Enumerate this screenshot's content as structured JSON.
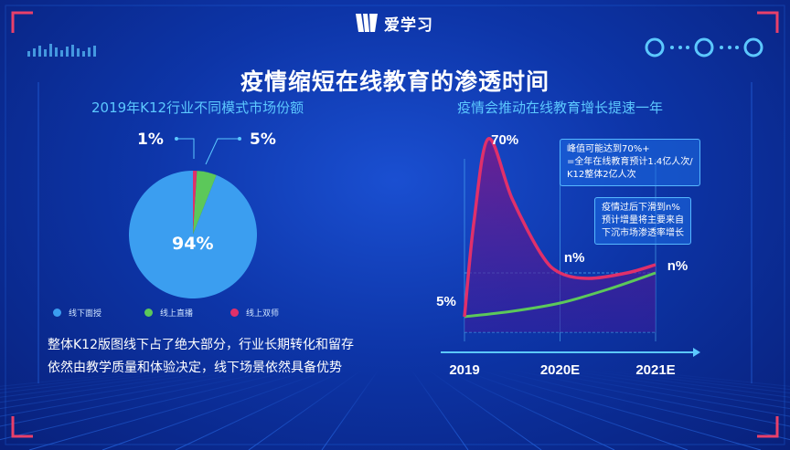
{
  "brand": {
    "name": "爱学习"
  },
  "title": "疫情缩短在线教育的渗透时间",
  "left": {
    "subtitle": "2019年K12行业不同模式市场份额",
    "summary_line1": "整体K12版图线下占了绝大部分，行业长期转化和留存",
    "summary_line2": "依然由教学质量和体验决定，线下场景依然具备优势"
  },
  "right": {
    "subtitle": "疫情会推动在线教育增长提速一年",
    "callout1": [
      "峰值可能达到70%+",
      "=全年在线教育预计1.4亿人次/",
      "K12整体2亿人次"
    ],
    "callout2": [
      "疫情过后下滑到n%",
      "预计增量将主要来自",
      "下沉市场渗透率增长"
    ]
  },
  "colors": {
    "offline": "#3b9ef0",
    "online_live": "#5cc85a",
    "online_dual": "#e0306a",
    "accent": "#5cc8ff"
  },
  "chart_data": [
    {
      "type": "pie",
      "title": "2019年K12行业不同模式市场份额",
      "slices": [
        {
          "name": "线下面授",
          "value": 94,
          "label": "94%",
          "color": "#3b9ef0"
        },
        {
          "name": "线上直播",
          "value": 5,
          "label": "5%",
          "color": "#5cc85a"
        },
        {
          "name": "线上双师",
          "value": 1,
          "label": "1%",
          "color": "#e0306a"
        }
      ],
      "legend_position": "bottom"
    },
    {
      "type": "line",
      "title": "疫情会推动在线教育增长提速一年",
      "categories": [
        "2019",
        "2020E",
        "2021E"
      ],
      "series": [
        {
          "color": "#e0306a",
          "points": [
            [
              2019.0,
              5
            ],
            [
              2019.1,
              40
            ],
            [
              2019.25,
              70
            ],
            [
              2019.5,
              48
            ],
            [
              2019.8,
              28
            ],
            [
              2020.0,
              21
            ],
            [
              2020.3,
              19
            ],
            [
              2020.7,
              21
            ],
            [
              2021.0,
              24
            ]
          ],
          "labels": [
            "70%",
            "n%"
          ]
        },
        {
          "color": "#5cc85a",
          "points": [
            [
              2019.0,
              5
            ],
            [
              2019.5,
              7
            ],
            [
              2020.0,
              10
            ],
            [
              2020.5,
              15
            ],
            [
              2021.0,
              21
            ]
          ],
          "labels": [
            "5%",
            "n%"
          ]
        }
      ],
      "ylabel": "",
      "xlabel": "",
      "grid": false
    }
  ]
}
